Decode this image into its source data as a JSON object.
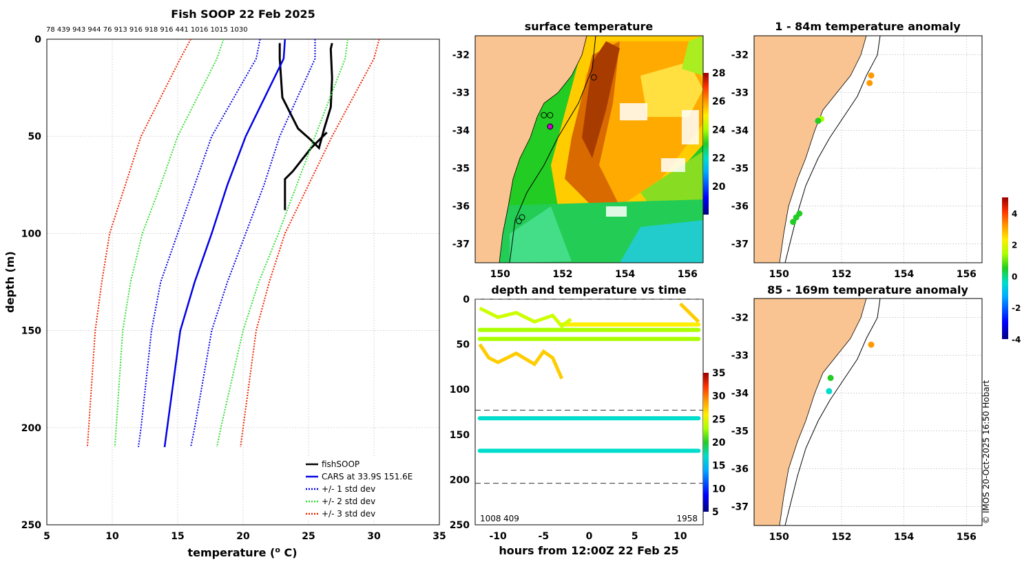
{
  "chart_data": [
    {
      "type": "line",
      "title": "Fish SOOP 22 Feb 2025",
      "top_labels": "78 439 943 944 76 913 916 918 916 441 1016 1015 1030",
      "xlabel": "temperature (",
      "xlabel_sup": "o",
      "xlabel_tail": " C)",
      "ylabel": "depth (m)",
      "xlim": [
        5,
        35
      ],
      "ylim": [
        250,
        0
      ],
      "xticks": [
        5,
        10,
        15,
        20,
        25,
        30,
        35
      ],
      "yticks": [
        0,
        50,
        100,
        150,
        200,
        250
      ],
      "cars_depths": [
        0,
        10,
        50,
        75,
        100,
        125,
        150,
        200,
        210
      ],
      "series": [
        {
          "name": "fishSOOP",
          "color": "#000000",
          "style": "solid",
          "x": [
            22.8,
            22.8,
            22.9,
            23.0,
            23.6,
            24.2,
            25.2,
            25.8,
            26.2,
            26.7,
            26.8,
            26.7,
            26.8,
            26.4,
            25.2,
            24.5,
            23.8,
            23.2,
            23.2
          ],
          "y": [
            2,
            10,
            20,
            30,
            38,
            46,
            52,
            56,
            46,
            35,
            20,
            5,
            2,
            48,
            56,
            62,
            68,
            72,
            88
          ]
        },
        {
          "name": "CARS at 33.9S 151.6E",
          "color": "#0000e6",
          "style": "solid",
          "x": [
            23.2,
            23.1,
            20.2,
            18.8,
            17.6,
            16.3,
            15.2,
            14.2,
            14.0
          ]
        },
        {
          "name": "+/- 1 std dev",
          "color": "#0000e6",
          "style": "dotted",
          "pair": true,
          "x_lo": [
            21.3,
            21.0,
            17.6,
            16.3,
            15.0,
            13.7,
            13.0,
            12.2,
            12.0
          ],
          "x_hi": [
            25.5,
            25.5,
            22.8,
            21.6,
            20.2,
            18.8,
            17.6,
            16.3,
            16.0
          ]
        },
        {
          "name": "+/- 2 std dev",
          "color": "#33dd33",
          "style": "dotted",
          "pair": true,
          "x_lo": [
            18.5,
            18.0,
            15.0,
            13.7,
            12.3,
            11.4,
            10.8,
            10.3,
            10.2
          ],
          "x_hi": [
            28.0,
            27.8,
            25.5,
            24.1,
            22.7,
            21.2,
            20.0,
            18.3,
            18.0
          ]
        },
        {
          "name": "+/- 3 std dev",
          "color": "#ee2200",
          "style": "dotted",
          "pair": true,
          "x_lo": [
            16.0,
            15.2,
            12.2,
            11.0,
            9.8,
            9.2,
            8.7,
            8.2,
            8.1
          ],
          "x_hi": [
            30.4,
            30.0,
            26.8,
            25.0,
            23.2,
            22.0,
            21.0,
            20.0,
            19.8
          ]
        }
      ],
      "legend_position": "bottom-right"
    },
    {
      "type": "heatmap",
      "title": "surface temperature",
      "xlim": [
        149.2,
        156.5
      ],
      "ylim": [
        -37.5,
        -31.5
      ],
      "xticks": [
        150,
        152,
        154,
        156
      ],
      "yticks": [
        -32,
        -33,
        -34,
        -35,
        -36,
        -37
      ],
      "colorbar": {
        "min": 18,
        "max": 28,
        "ticks": [
          20,
          22,
          24,
          26,
          28
        ]
      }
    },
    {
      "type": "scatter",
      "title": "depth and temperature vs time",
      "xlabel": "hours from 12:00Z 22 Feb 25",
      "xlim": [
        -12.5,
        12.5
      ],
      "ylim": [
        250,
        0
      ],
      "xticks": [
        -10,
        -5,
        0,
        5,
        10
      ],
      "yticks": [
        0,
        50,
        100,
        150,
        200,
        250
      ],
      "dashed_depths": [
        0,
        123,
        204
      ],
      "corner_left": "1008",
      "corner_left2": "409",
      "corner_right": "1958",
      "tracks": [
        {
          "depth": 34,
          "temperature": 21.5
        },
        {
          "depth": 44,
          "temperature": 20.5
        },
        {
          "depth": 132,
          "temperature": 16.5
        },
        {
          "depth": 168,
          "temperature": 16.5
        },
        {
          "depth": 28,
          "temperature": 25.5
        }
      ],
      "colorbar": {
        "min": 5,
        "max": 35,
        "ticks": [
          5,
          10,
          15,
          20,
          25,
          30,
          35
        ]
      }
    },
    {
      "type": "scatter",
      "title": "1 - 84m temperature anomaly",
      "xlim": [
        149.2,
        156.5
      ],
      "ylim": [
        -37.5,
        -31.5
      ],
      "xticks": [
        150,
        152,
        154,
        156
      ],
      "yticks": [
        -32,
        -33,
        -34,
        -35,
        -36,
        -37
      ],
      "points": [
        {
          "lon": 152.95,
          "lat": -32.55,
          "anomaly": 2.8
        },
        {
          "lon": 152.9,
          "lat": -32.75,
          "anomaly": 2.5
        },
        {
          "lon": 151.35,
          "lat": -33.7,
          "anomaly": 1.2
        },
        {
          "lon": 151.25,
          "lat": -33.75,
          "anomaly": 0.4
        },
        {
          "lon": 150.65,
          "lat": -36.2,
          "anomaly": 0.3
        },
        {
          "lon": 150.55,
          "lat": -36.3,
          "anomaly": 0.1
        },
        {
          "lon": 150.45,
          "lat": -36.42,
          "anomaly": 0.0
        }
      ]
    },
    {
      "type": "scatter",
      "title": "85 - 169m temperature anomaly",
      "xlim": [
        149.2,
        156.5
      ],
      "ylim": [
        -37.5,
        -31.5
      ],
      "xticks": [
        150,
        152,
        154,
        156
      ],
      "yticks": [
        -32,
        -33,
        -34,
        -35,
        -36,
        -37
      ],
      "points": [
        {
          "lon": 152.95,
          "lat": -32.72,
          "anomaly": 3.0
        },
        {
          "lon": 151.65,
          "lat": -33.6,
          "anomaly": 0.2
        },
        {
          "lon": 151.6,
          "lat": -33.95,
          "anomaly": -1.5
        }
      ],
      "colorbar": {
        "min": -4,
        "max": 5,
        "ticks": [
          4,
          2,
          0,
          -2,
          -4
        ]
      }
    }
  ],
  "credit": "© IMOS 20-Oct-2025 16:50 Hobart",
  "colors": {
    "land": "#f9c491",
    "jet": [
      "#00007f",
      "#0000ff",
      "#00aaff",
      "#00ddcc",
      "#22cc22",
      "#aaff00",
      "#ffee00",
      "#ff9900",
      "#ff3300",
      "#990000"
    ]
  }
}
